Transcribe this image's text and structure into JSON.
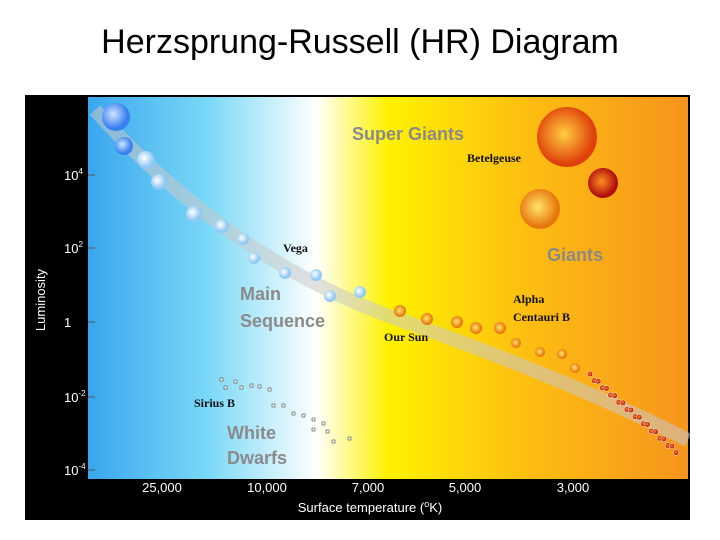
{
  "header": {
    "title": "Herzsprung-Russell (HR) Diagram"
  },
  "diagram": {
    "y_axis": {
      "label": "Luminosity",
      "ticks": [
        {
          "base": "10",
          "exp": "4"
        },
        {
          "base": "10",
          "exp": "2"
        },
        {
          "base": "1"
        },
        {
          "base": "10",
          "exp": "-2"
        },
        {
          "base": "10",
          "exp": "-4"
        }
      ]
    },
    "x_axis": {
      "ticks": [
        "25,000",
        "10,000",
        "7,000",
        "5,000",
        "3,000"
      ],
      "label": {
        "before": "Surface temperature (",
        "sup": "o",
        "after": "K)"
      }
    },
    "regions": {
      "super_giants": "Super Giants",
      "giants": "Giants",
      "main_sequence": [
        "Main",
        "Sequence"
      ],
      "white_dwarfs": [
        "White",
        "Dwarfs"
      ]
    },
    "stars": {
      "betelgeuse": "Betelgeuse",
      "vega": "Vega",
      "alpha_centauri_b": [
        "Alpha",
        "Centauri B"
      ],
      "our_sun": "Our Sun",
      "sirius_b": "Sirius B"
    }
  }
}
